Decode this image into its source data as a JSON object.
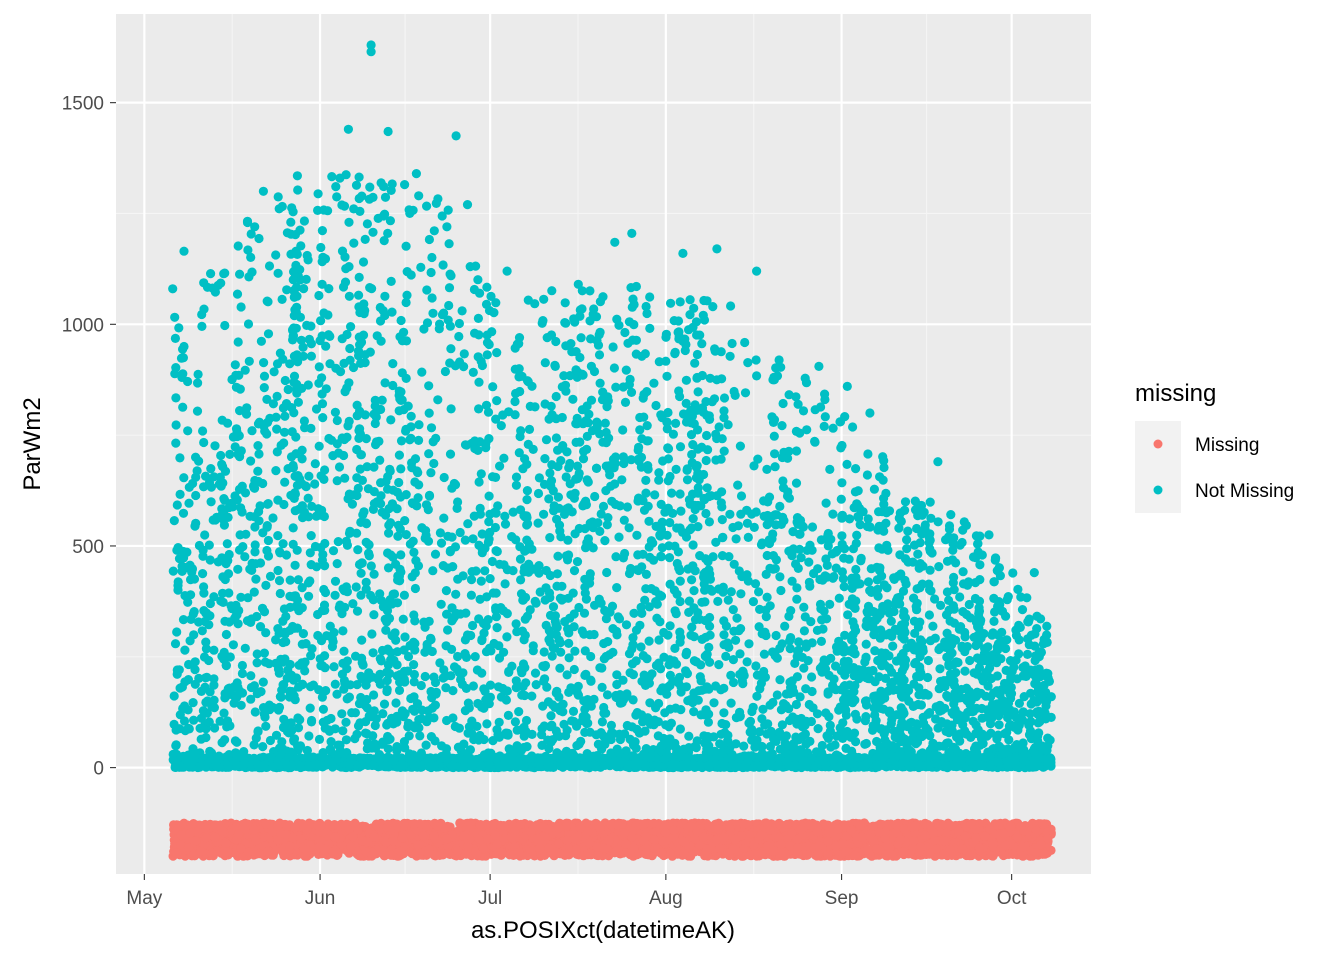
{
  "chart_data": {
    "type": "scatter",
    "xlabel": "as.POSIXct(datetimeAK)",
    "ylabel": "ParWm2",
    "x_axis": {
      "kind": "date",
      "range": [
        "2020-04-26",
        "2020-10-15"
      ],
      "ticks": [
        {
          "date": "2020-05-01",
          "label": "May"
        },
        {
          "date": "2020-06-01",
          "label": "Jun"
        },
        {
          "date": "2020-07-01",
          "label": "Jul"
        },
        {
          "date": "2020-08-01",
          "label": "Aug"
        },
        {
          "date": "2020-09-01",
          "label": "Sep"
        },
        {
          "date": "2020-10-01",
          "label": "Oct"
        }
      ]
    },
    "y_axis": {
      "range": [
        -240,
        1700
      ],
      "ticks": [
        0,
        500,
        1000,
        1500
      ],
      "tick_labels": [
        "0",
        "500",
        "1000",
        "1500"
      ]
    },
    "data_span": {
      "start": "2020-05-06",
      "end": "2020-10-08"
    },
    "legend": {
      "title": "missing",
      "placement": "right",
      "entries": [
        {
          "label": "Missing",
          "color": "#F8766D"
        },
        {
          "label": "Not Missing",
          "color": "#00BFC4"
        }
      ]
    },
    "series": [
      {
        "name": "Missing",
        "color": "#F8766D",
        "y_band": [
          -200,
          -125
        ],
        "note_values": "constant placeholder band of points below zero spanning the full date range"
      },
      {
        "name": "Not Missing",
        "color": "#00BFC4",
        "sample_points": [
          {
            "x": "2020-05-06",
            "y": 1080
          },
          {
            "x": "2020-05-08",
            "y": 1165
          },
          {
            "x": "2020-05-08",
            "y": 950
          },
          {
            "x": "2020-05-22",
            "y": 1300
          },
          {
            "x": "2020-05-28",
            "y": 1335
          },
          {
            "x": "2020-06-06",
            "y": 1440
          },
          {
            "x": "2020-06-10",
            "y": 1630
          },
          {
            "x": "2020-06-10",
            "y": 1615
          },
          {
            "x": "2020-06-13",
            "y": 1435
          },
          {
            "x": "2020-06-18",
            "y": 1340
          },
          {
            "x": "2020-06-25",
            "y": 1425
          },
          {
            "x": "2020-06-27",
            "y": 1270
          },
          {
            "x": "2020-07-04",
            "y": 1120
          },
          {
            "x": "2020-07-23",
            "y": 1185
          },
          {
            "x": "2020-07-26",
            "y": 1205
          },
          {
            "x": "2020-08-04",
            "y": 1160
          },
          {
            "x": "2020-08-10",
            "y": 1170
          },
          {
            "x": "2020-08-17",
            "y": 1120
          },
          {
            "x": "2020-08-28",
            "y": 905
          },
          {
            "x": "2020-09-02",
            "y": 860
          },
          {
            "x": "2020-09-06",
            "y": 800
          },
          {
            "x": "2020-09-18",
            "y": 690
          },
          {
            "x": "2020-09-27",
            "y": 525
          },
          {
            "x": "2020-10-05",
            "y": 440
          },
          {
            "x": "2020-10-08",
            "y": 160
          }
        ],
        "envelope": [
          {
            "x": "2020-05-06",
            "y": 1000
          },
          {
            "x": "2020-05-21",
            "y": 1270
          },
          {
            "x": "2020-06-06",
            "y": 1350
          },
          {
            "x": "2020-06-22",
            "y": 1300
          },
          {
            "x": "2020-07-05",
            "y": 1080
          },
          {
            "x": "2020-07-25",
            "y": 1100
          },
          {
            "x": "2020-08-10",
            "y": 1080
          },
          {
            "x": "2020-08-28",
            "y": 860
          },
          {
            "x": "2020-09-12",
            "y": 650
          },
          {
            "x": "2020-09-25",
            "y": 550
          },
          {
            "x": "2020-10-08",
            "y": 320
          }
        ]
      }
    ]
  }
}
